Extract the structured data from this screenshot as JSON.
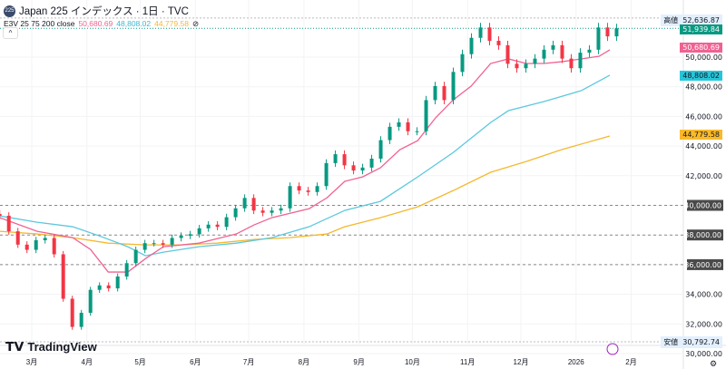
{
  "header": {
    "symbol_badge": "225",
    "title": "Japan 225 インデックス · 1日 · TVC"
  },
  "indicator": {
    "label": "E3V 25 75 200 close",
    "ma25": "50,680.69",
    "ma75": "48,808.02",
    "ma200": "44,779.58",
    "hide_icon": "⊘"
  },
  "labels": {
    "high_label": "高値",
    "high_value": "52,636.87",
    "low_label": "安値",
    "low_value": "30,792.74",
    "last_price": "51,939.84"
  },
  "colors": {
    "up": "#089981",
    "down": "#f23645",
    "ma25": "#f06292",
    "ma75": "#5bc8dd",
    "ma200": "#f5b82e"
  },
  "logo": "TradingView",
  "chart_data": {
    "type": "candlestick",
    "title": "Japan 225 インデックス · 1日 · TVC",
    "x_ticks": [
      {
        "t": 0,
        "label": "3月"
      },
      {
        "t": 31,
        "label": "4月"
      },
      {
        "t": 61,
        "label": "5月"
      },
      {
        "t": 92,
        "label": "6月"
      },
      {
        "t": 122,
        "label": "7月"
      },
      {
        "t": 153,
        "label": "8月"
      },
      {
        "t": 184,
        "label": "9月"
      },
      {
        "t": 214,
        "label": "10月"
      },
      {
        "t": 245,
        "label": "11月"
      },
      {
        "t": 275,
        "label": "12月"
      },
      {
        "t": 306,
        "label": "2026"
      },
      {
        "t": 337,
        "label": "2月"
      }
    ],
    "y_ticks": [
      "30,000.00",
      "32,000.00",
      "34,000.00",
      "36,000.00",
      "38,000.00",
      "40,000.00",
      "42,000.00",
      "44,000.00",
      "46,000.00",
      "48,000.00",
      "50,000.00"
    ],
    "y_tick_values": [
      30000,
      32000,
      34000,
      36000,
      38000,
      40000,
      42000,
      44000,
      46000,
      48000,
      50000
    ],
    "ylim": [
      29500,
      54000
    ],
    "xlim_days": [
      -18,
      345
    ],
    "alert_levels": [
      40000,
      38000,
      36000
    ],
    "high": 52636.87,
    "low": 30792.74,
    "last": 51939.84,
    "candle_start_day": -18,
    "candle_step_days": 5.1,
    "closes": [
      39300,
      38250,
      37350,
      37000,
      37650,
      37800,
      36700,
      33700,
      31800,
      32750,
      34300,
      34600,
      34400,
      35200,
      36100,
      37000,
      37450,
      37450,
      37350,
      37800,
      37950,
      38050,
      38450,
      38700,
      38550,
      39200,
      39800,
      40500,
      39650,
      39500,
      39650,
      39800,
      41300,
      41000,
      40900,
      41300,
      42850,
      43450,
      42700,
      42350,
      42550,
      43150,
      44400,
      45300,
      45600,
      45000,
      45000,
      47100,
      48050,
      47100,
      49000,
      50200,
      51300,
      52000,
      51100,
      50800,
      49550,
      49250,
      49550,
      49900,
      50500,
      50800,
      49900,
      49250,
      50300,
      50500,
      52000,
      51400,
      51940
    ],
    "series": [
      {
        "name": "MA25",
        "points": [
          [
            -18,
            39170
          ],
          [
            3,
            38250
          ],
          [
            23,
            37820
          ],
          [
            33,
            37030
          ],
          [
            43,
            35500
          ],
          [
            54,
            35500
          ],
          [
            64,
            36410
          ],
          [
            74,
            37210
          ],
          [
            94,
            37450
          ],
          [
            115,
            38070
          ],
          [
            125,
            38680
          ],
          [
            135,
            39170
          ],
          [
            156,
            39780
          ],
          [
            166,
            40510
          ],
          [
            176,
            41620
          ],
          [
            186,
            41920
          ],
          [
            196,
            42530
          ],
          [
            207,
            43760
          ],
          [
            217,
            44370
          ],
          [
            227,
            45900
          ],
          [
            237,
            47120
          ],
          [
            247,
            48040
          ],
          [
            258,
            49570
          ],
          [
            268,
            49880
          ],
          [
            278,
            49570
          ],
          [
            288,
            49570
          ],
          [
            298,
            49690
          ],
          [
            309,
            49880
          ],
          [
            319,
            50060
          ],
          [
            325,
            50490
          ]
        ]
      },
      {
        "name": "MA75",
        "points": [
          [
            -18,
            39290
          ],
          [
            3,
            38860
          ],
          [
            23,
            38560
          ],
          [
            38,
            37940
          ],
          [
            54,
            37210
          ],
          [
            64,
            36600
          ],
          [
            74,
            36840
          ],
          [
            94,
            37210
          ],
          [
            115,
            37450
          ],
          [
            135,
            37820
          ],
          [
            156,
            38560
          ],
          [
            176,
            39660
          ],
          [
            196,
            40270
          ],
          [
            217,
            41920
          ],
          [
            237,
            43570
          ],
          [
            258,
            45590
          ],
          [
            268,
            46390
          ],
          [
            288,
            47000
          ],
          [
            309,
            47740
          ],
          [
            325,
            48780
          ]
        ]
      },
      {
        "name": "MA200",
        "points": [
          [
            -18,
            38250
          ],
          [
            3,
            38070
          ],
          [
            23,
            37820
          ],
          [
            43,
            37450
          ],
          [
            64,
            37330
          ],
          [
            84,
            37330
          ],
          [
            104,
            37450
          ],
          [
            125,
            37700
          ],
          [
            145,
            37820
          ],
          [
            166,
            38070
          ],
          [
            176,
            38560
          ],
          [
            196,
            39170
          ],
          [
            217,
            39900
          ],
          [
            237,
            41000
          ],
          [
            258,
            42230
          ],
          [
            278,
            42960
          ],
          [
            298,
            43760
          ],
          [
            325,
            44680
          ]
        ]
      }
    ]
  }
}
